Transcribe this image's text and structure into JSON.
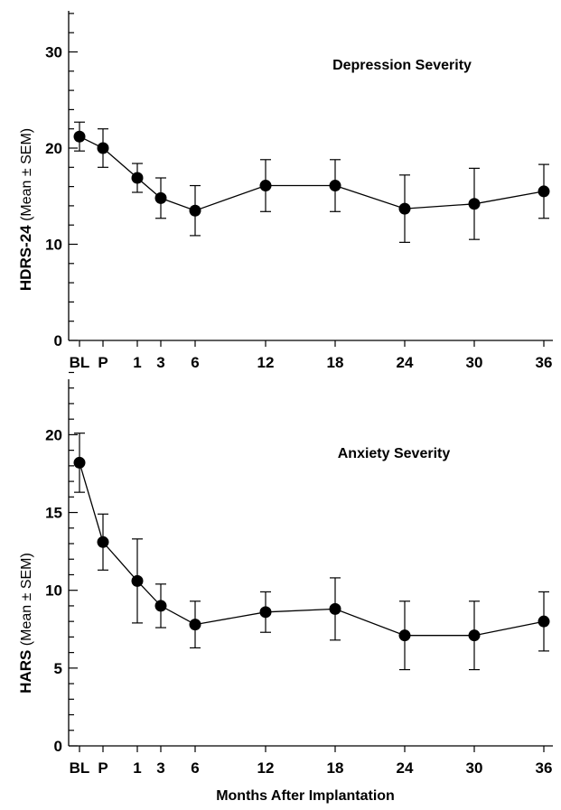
{
  "chart_data": [
    {
      "type": "line",
      "title": "Depression Severity",
      "ylabel_bold": "HDRS-24",
      "ylabel_rest": " (Mean ± SEM)",
      "categories": [
        "BL",
        "P",
        "1",
        "3",
        "6",
        "12",
        "18",
        "24",
        "30",
        "36"
      ],
      "series": [
        {
          "values": [
            21.2,
            20.0,
            16.9,
            14.8,
            13.5,
            16.1,
            16.1,
            13.7,
            14.2,
            15.5
          ],
          "err": [
            1.5,
            2.0,
            1.5,
            2.1,
            2.6,
            2.7,
            2.7,
            3.5,
            3.7,
            2.8
          ]
        }
      ],
      "ylim": [
        0,
        35
      ],
      "yticks_labeled": [
        "0",
        "10",
        "20",
        "30"
      ],
      "grid": false
    },
    {
      "type": "line",
      "title": "Anxiety Severity",
      "ylabel_bold": "HARS",
      "ylabel_rest": " (Mean ± SEM)",
      "xlabel": "Months After Implantation",
      "categories": [
        "BL",
        "P",
        "1",
        "3",
        "6",
        "12",
        "18",
        "24",
        "30",
        "36"
      ],
      "series": [
        {
          "values": [
            18.2,
            13.1,
            10.6,
            9.0,
            7.8,
            8.6,
            8.8,
            7.1,
            7.1,
            8.0
          ],
          "err": [
            1.9,
            1.8,
            2.7,
            1.4,
            1.5,
            1.3,
            2.0,
            2.2,
            2.2,
            1.9
          ]
        }
      ],
      "ylim": [
        0,
        24
      ],
      "yticks_labeled": [
        "0",
        "5",
        "10",
        "15",
        "20"
      ],
      "grid": false
    }
  ]
}
